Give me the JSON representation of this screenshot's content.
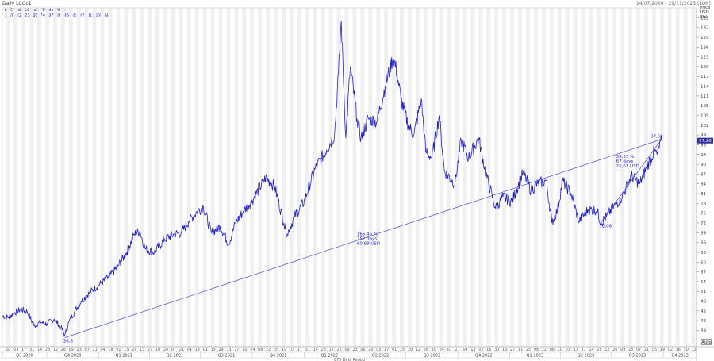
{
  "window": {
    "title": "Daily LCOc1",
    "date_range": "14/07/2020 - 29/11/2023 (LON)"
  },
  "legend": {
    "instrument": "Crude LCOc1; Trade Price",
    "values": "28/09/2023; 96,74; 97,69; 96,68; 97,28; N/A; N/A"
  },
  "y_axis_header": {
    "line1": "Price",
    "line2": "USD",
    "line3": "Bbl"
  },
  "auto_button": "Auto",
  "colors": {
    "series": "#2020c8",
    "trendline": "#4b4bd6",
    "band": "#f0f0f0",
    "last_price_tag": "#2a2a9a"
  },
  "chart_data": {
    "type": "line",
    "title": "Daily LCOc1",
    "x_range": [
      "2020-07-14",
      "2023-11-29"
    ],
    "ylim": [
      34,
      138
    ],
    "y_ticks": [
      36,
      39,
      42,
      45,
      48,
      51,
      54,
      57,
      60,
      63,
      66,
      69,
      72,
      75,
      78,
      81,
      84,
      87,
      90,
      93,
      96,
      99,
      102,
      105,
      108,
      111,
      114,
      117,
      120,
      123,
      126,
      129,
      132,
      135
    ],
    "last_price": "97,28",
    "quarter_labels": [
      "Q3 2020",
      "Q4 2020",
      "Q1 2021",
      "Q2 2021",
      "Q3 2021",
      "Q4 2021",
      "Q1 2022",
      "Q2 2022",
      "Q3 2022",
      "Q4 2022",
      "Q1 2023",
      "Q2 2023",
      "Q3 2023",
      "Q4 2023"
    ],
    "day_labels": [
      "06",
      "20",
      "03",
      "17",
      "31",
      "14",
      "28",
      "12",
      "26",
      "09",
      "23",
      "07",
      "21",
      "04",
      "18",
      "01",
      "15",
      "29",
      "13",
      "27",
      "10",
      "24",
      "07",
      "21",
      "04",
      "18",
      "01",
      "15",
      "29",
      "13",
      "27",
      "10",
      "24",
      "08",
      "22",
      "05",
      "19",
      "03",
      "17",
      "31",
      "14",
      "28",
      "12",
      "26",
      "09",
      "23",
      "06",
      "20",
      "03",
      "17",
      "01",
      "15",
      "29",
      "12",
      "26",
      "10",
      "24",
      "07",
      "21",
      "04",
      "18",
      "02",
      "16",
      "30",
      "13",
      "27",
      "11",
      "25",
      "08",
      "22",
      "06",
      "20",
      "03",
      "17",
      "31",
      "14",
      "28",
      "12",
      "26",
      "09",
      "23",
      "07",
      "21",
      "05",
      "19",
      "02",
      "16",
      "30",
      "13",
      "27",
      "11",
      "25",
      "08",
      "22",
      "05",
      "19",
      "03",
      "17",
      "01",
      "15",
      "29",
      "12",
      "26",
      "10",
      "24",
      "07",
      "21",
      "04",
      "18",
      "02",
      "16"
    ],
    "period_label": "875 Data Period",
    "series": [
      {
        "name": "Crude LCOc1",
        "points": [
          [
            "2020-07-14",
            43.5
          ],
          [
            "2020-07-25",
            43.0
          ],
          [
            "2020-08-05",
            44.5
          ],
          [
            "2020-08-16",
            45.5
          ],
          [
            "2020-08-27",
            44.8
          ],
          [
            "2020-09-08",
            40.5
          ],
          [
            "2020-09-20",
            41.5
          ],
          [
            "2020-10-01",
            41.0
          ],
          [
            "2020-10-14",
            42.5
          ],
          [
            "2020-10-26",
            40.0
          ],
          [
            "2020-11-02",
            37.5
          ],
          [
            "2020-11-10",
            42.0
          ],
          [
            "2020-11-20",
            45.0
          ],
          [
            "2020-12-01",
            48.0
          ],
          [
            "2020-12-15",
            50.5
          ],
          [
            "2021-01-05",
            53.5
          ],
          [
            "2021-01-20",
            55.5
          ],
          [
            "2021-02-05",
            59.0
          ],
          [
            "2021-02-20",
            63.0
          ],
          [
            "2021-03-05",
            68.5
          ],
          [
            "2021-03-15",
            69.5
          ],
          [
            "2021-03-25",
            64.0
          ],
          [
            "2021-04-10",
            63.0
          ],
          [
            "2021-04-28",
            67.0
          ],
          [
            "2021-05-15",
            68.5
          ],
          [
            "2021-05-28",
            69.0
          ],
          [
            "2021-06-10",
            72.5
          ],
          [
            "2021-06-25",
            75.5
          ],
          [
            "2021-07-06",
            77.0
          ],
          [
            "2021-07-20",
            69.0
          ],
          [
            "2021-08-05",
            71.0
          ],
          [
            "2021-08-20",
            65.5
          ],
          [
            "2021-09-01",
            72.0
          ],
          [
            "2021-09-15",
            75.5
          ],
          [
            "2021-10-01",
            79.0
          ],
          [
            "2021-10-25",
            86.0
          ],
          [
            "2021-11-10",
            83.0
          ],
          [
            "2021-11-26",
            72.0
          ],
          [
            "2021-12-02",
            68.5
          ],
          [
            "2021-12-15",
            74.0
          ],
          [
            "2022-01-01",
            78.5
          ],
          [
            "2022-01-20",
            88.5
          ],
          [
            "2022-02-10",
            94.5
          ],
          [
            "2022-02-24",
            99.0
          ],
          [
            "2022-03-03",
            118.0
          ],
          [
            "2022-03-08",
            134.0
          ],
          [
            "2022-03-16",
            98.0
          ],
          [
            "2022-03-24",
            120.0
          ],
          [
            "2022-04-05",
            104.0
          ],
          [
            "2022-04-12",
            98.0
          ],
          [
            "2022-04-25",
            104.0
          ],
          [
            "2022-05-10",
            103.0
          ],
          [
            "2022-05-25",
            114.0
          ],
          [
            "2022-06-08",
            123.0
          ],
          [
            "2022-06-15",
            118.0
          ],
          [
            "2022-06-22",
            110.0
          ],
          [
            "2022-07-05",
            102.0
          ],
          [
            "2022-07-15",
            99.0
          ],
          [
            "2022-07-28",
            110.0
          ],
          [
            "2022-08-05",
            94.0
          ],
          [
            "2022-08-16",
            92.0
          ],
          [
            "2022-08-29",
            105.0
          ],
          [
            "2022-09-07",
            88.0
          ],
          [
            "2022-09-26",
            84.0
          ],
          [
            "2022-10-07",
            97.5
          ],
          [
            "2022-10-20",
            92.0
          ],
          [
            "2022-11-07",
            98.0
          ],
          [
            "2022-11-20",
            87.0
          ],
          [
            "2022-12-07",
            76.5
          ],
          [
            "2022-12-20",
            80.0
          ],
          [
            "2023-01-05",
            78.5
          ],
          [
            "2023-01-25",
            87.5
          ],
          [
            "2023-02-08",
            82.0
          ],
          [
            "2023-02-20",
            84.0
          ],
          [
            "2023-03-07",
            85.0
          ],
          [
            "2023-03-17",
            72.0
          ],
          [
            "2023-03-27",
            76.0
          ],
          [
            "2023-04-05",
            85.0
          ],
          [
            "2023-04-20",
            81.0
          ],
          [
            "2023-05-04",
            72.5
          ],
          [
            "2023-05-20",
            76.0
          ],
          [
            "2023-06-05",
            76.0
          ],
          [
            "2023-06-12",
            72.0
          ],
          [
            "2023-06-22",
            74.0
          ],
          [
            "2023-07-05",
            77.0
          ],
          [
            "2023-07-20",
            80.0
          ],
          [
            "2023-08-05",
            86.5
          ],
          [
            "2023-08-20",
            84.0
          ],
          [
            "2023-09-01",
            89.0
          ],
          [
            "2023-09-15",
            94.0
          ],
          [
            "2023-09-20",
            93.0
          ],
          [
            "2023-09-28",
            97.3
          ]
        ]
      }
    ],
    "trendlines": [
      {
        "from": [
          "2020-11-02",
          36.8
        ],
        "to": [
          "2023-09-28",
          97.69
        ]
      },
      {
        "from": [
          "2023-06-12",
          72.08
        ],
        "to": [
          "2023-09-28",
          97.69
        ]
      }
    ],
    "annotations": {
      "low_label": "36,8",
      "high_label": "97,69",
      "mid_low_label": "72,08",
      "long_trend": {
        "pct": "165,46 %",
        "days": "752 days",
        "usd": "60,89 USD"
      },
      "short_trend": {
        "pct": "35,53 %",
        "days": "67 days",
        "usd": "25,61 USD"
      }
    }
  }
}
